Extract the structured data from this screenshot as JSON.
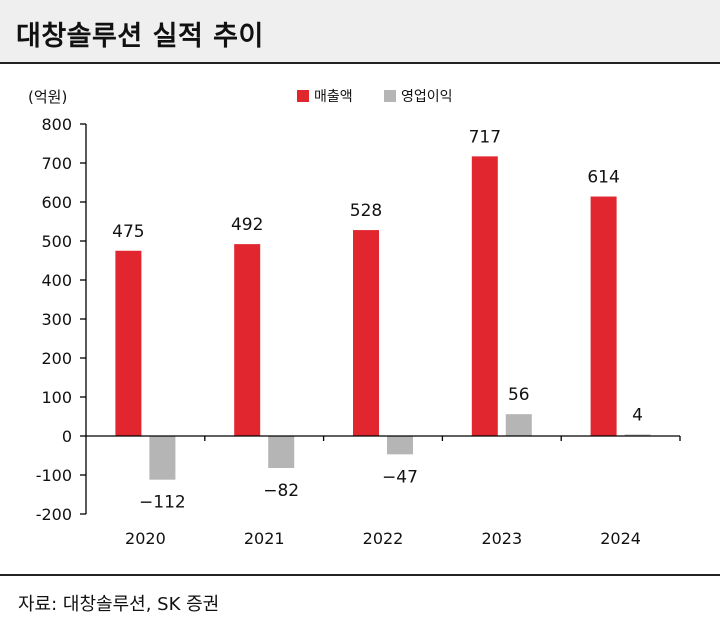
{
  "header": {
    "title": "대창솔루션 실적 추이"
  },
  "footer": {
    "source": "자료: 대창솔루션, SK 증권"
  },
  "colors": {
    "revenue": "#e1262f",
    "operating_profit": "#b5b5b5",
    "axis": "#000000"
  },
  "chart_data": {
    "type": "bar",
    "title": "대창솔루션 실적 추이",
    "unit_label": "(억원)",
    "xlabel": "",
    "ylabel": "",
    "categories": [
      "2020",
      "2021",
      "2022",
      "2023",
      "2024"
    ],
    "series": [
      {
        "name": "매출액",
        "values": [
          475,
          492,
          528,
          717,
          614
        ]
      },
      {
        "name": "영업이익",
        "values": [
          -112,
          -82,
          -47,
          56,
          4
        ]
      }
    ],
    "value_labels": {
      "매출액": [
        "475",
        "492",
        "528",
        "717",
        "614"
      ],
      "영업이익": [
        "−112",
        "−82",
        "−47",
        "56",
        "4"
      ]
    },
    "ylim": [
      -200,
      800
    ],
    "yticks": [
      -200,
      -100,
      0,
      100,
      200,
      300,
      400,
      500,
      600,
      700,
      800
    ],
    "ytick_labels": [
      "-200",
      "-100",
      "0",
      "100",
      "200",
      "300",
      "400",
      "500",
      "600",
      "700",
      "800"
    ],
    "grid": false,
    "legend_position": "top-center"
  }
}
